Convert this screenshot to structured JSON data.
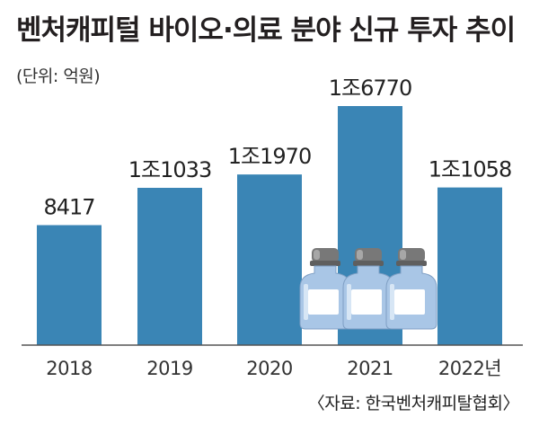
{
  "title": "벤처캐피털 바이오·의료 분야 신규 투자 추이",
  "unit": "(단위: 억원)",
  "source": "〈자료: 한국벤처캐피탈협회〉",
  "colors": {
    "bar": "#3a85b5",
    "axis": "#555555",
    "background": "#ffffff",
    "bottle_glass": "#a9c6e6",
    "bottle_cap": "#787878"
  },
  "chart_data": {
    "type": "bar",
    "title": "벤처캐피털 바이오·의료 분야 신규 투자 추이",
    "ylabel": "(단위: 억원)",
    "categories": [
      "2018",
      "2019",
      "2020",
      "2021",
      "2022년"
    ],
    "values": [
      8417,
      11033,
      11970,
      16770,
      11058
    ],
    "labels": [
      "8417",
      "1조1033",
      "1조1970",
      "1조6770",
      "1조1058"
    ],
    "ylim": [
      0,
      17000
    ],
    "grid": false,
    "legend": "none"
  }
}
